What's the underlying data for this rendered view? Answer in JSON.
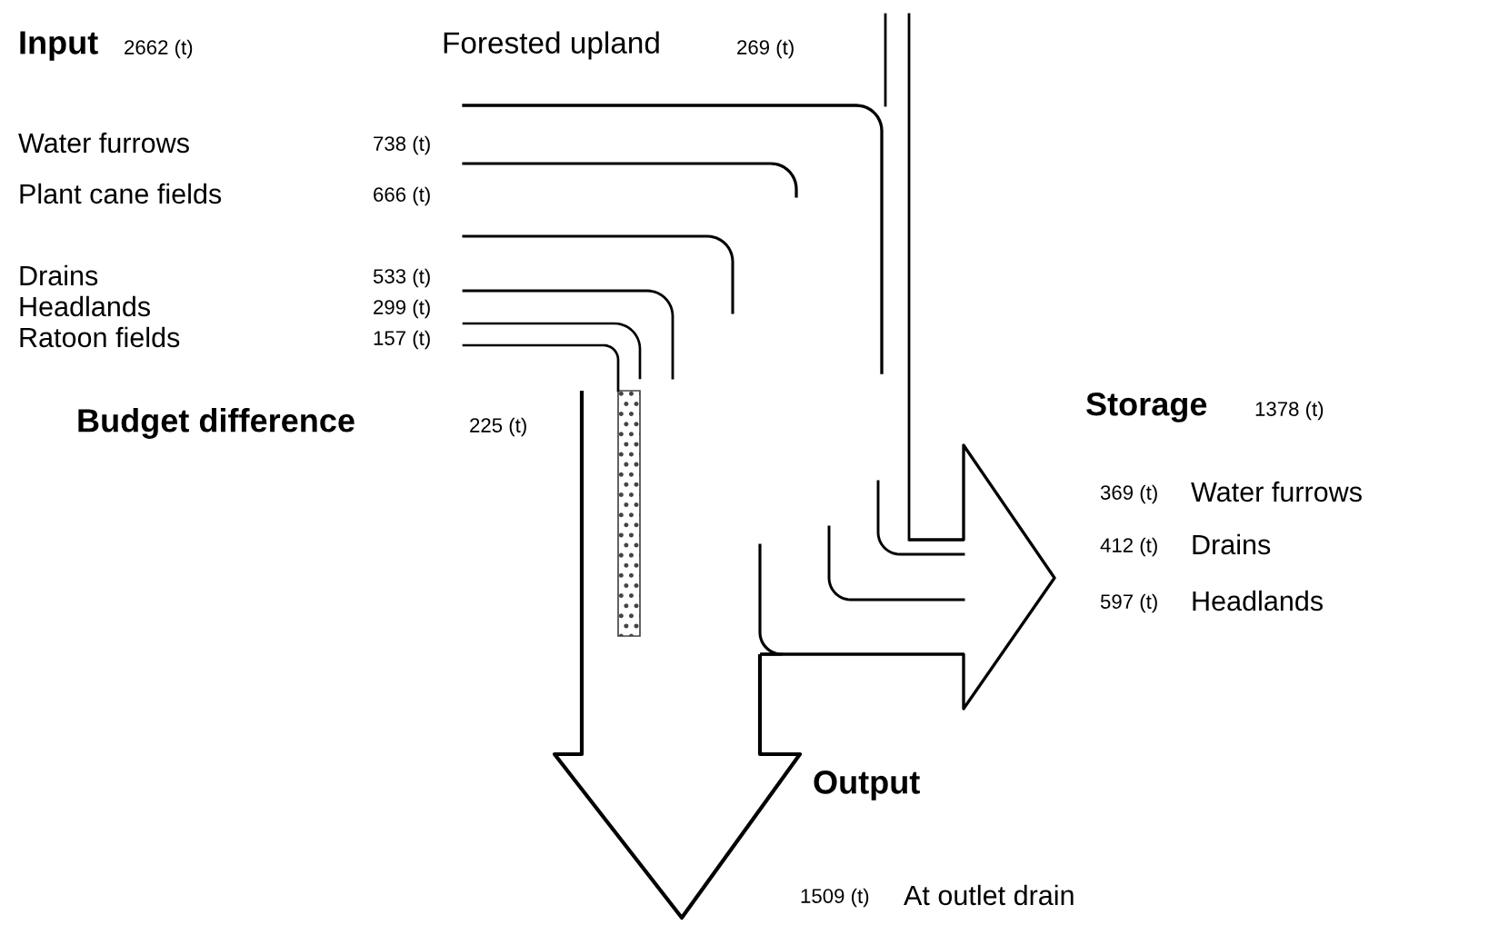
{
  "chart_data": {
    "type": "other",
    "categories": [
      "Water furrows",
      "Plant cane fields",
      "Drains",
      "Headlands",
      "Ratoon fields",
      "Forested upland",
      "Budget difference",
      "Water furrows",
      "Drains",
      "Headlands",
      "At outlet drain"
    ],
    "values": [
      738,
      666,
      533,
      299,
      157,
      269,
      225,
      369,
      412,
      597,
      1509
    ],
    "value_labels": [
      "738 (t)",
      "666 (t)",
      "533 (t)",
      "299 (t)",
      "157 (t)",
      "269 (t)",
      "225 (t)",
      "369 (t)",
      "412 (t)",
      "597 (t)",
      "1509 (t)"
    ],
    "annotations": [
      "Input",
      "2662 (t)",
      "Storage",
      "1378 (t)",
      "Output"
    ]
  }
}
